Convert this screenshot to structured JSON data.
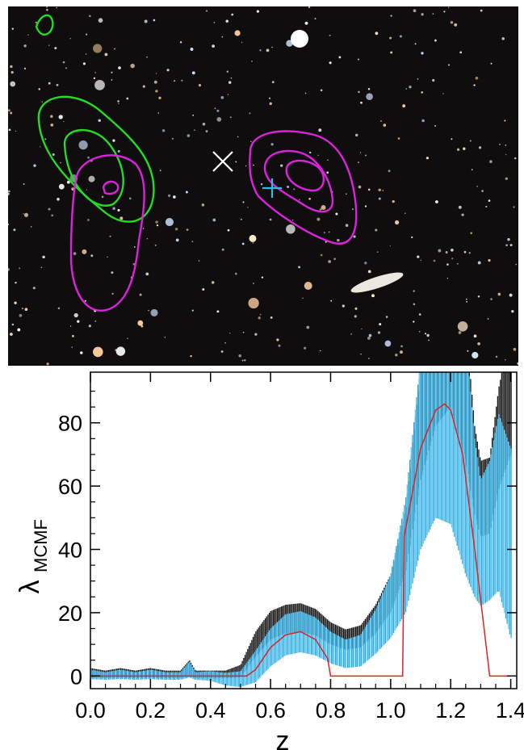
{
  "colors": {
    "sky_background": "#0f0d0e",
    "contour_green": "#22dd22",
    "contour_magenta": "#dd22dd",
    "marker_x": "#ffffff",
    "marker_plus": "#33bbdd",
    "errorbar_black": "#111111",
    "errorbar_blue": "#2ea8e0",
    "errorbar_lightblue": "#5fd0f5",
    "model_line": "#dd2222"
  },
  "image_panel": {
    "markers": [
      "cross-x-marker",
      "plus-marker"
    ],
    "contours": [
      "green-contours-left",
      "magenta-contours-left",
      "magenta-contours-right"
    ]
  },
  "chart_data": {
    "type": "line",
    "title": "",
    "xlabel": "z",
    "ylabel_main": "λ",
    "ylabel_sub": "MCMF",
    "xlim": [
      0.0,
      1.42
    ],
    "ylim": [
      -4,
      96
    ],
    "x_ticks": [
      "0.0",
      "0.2",
      "0.4",
      "0.6",
      "0.8",
      "1.0",
      "1.2",
      "1.4"
    ],
    "y_ticks": [
      "0",
      "20",
      "40",
      "60",
      "80"
    ],
    "series": [
      {
        "style": "errorbar-black",
        "x": [
          0.0,
          0.05,
          0.1,
          0.15,
          0.2,
          0.25,
          0.3,
          0.33,
          0.35,
          0.4,
          0.45,
          0.5,
          0.55,
          0.6,
          0.65,
          0.7,
          0.75,
          0.8,
          0.85,
          0.9,
          0.95,
          1.0,
          1.05,
          1.1,
          1.15,
          1.2,
          1.25,
          1.28,
          1.3,
          1.33,
          1.36,
          1.4
        ],
        "y": [
          1,
          0.5,
          1,
          0.5,
          1,
          0.5,
          0.5,
          2.5,
          0.5,
          0.5,
          0.5,
          1.5,
          10,
          16,
          18,
          18.5,
          17,
          13.5,
          11.5,
          12.5,
          18,
          26,
          43,
          80,
          103,
          110,
          90,
          65,
          56,
          57,
          75,
          90
        ],
        "err": [
          1.5,
          1.2,
          1.5,
          1.2,
          1.5,
          1.2,
          1.2,
          2.5,
          1.2,
          1.2,
          1.2,
          2,
          4,
          4.5,
          4.5,
          4.5,
          4.2,
          3.5,
          3.2,
          3.5,
          4.5,
          6,
          10,
          18,
          24,
          25,
          22,
          14,
          12,
          12,
          16,
          20
        ]
      },
      {
        "style": "errorbar-blue",
        "x": [
          0.0,
          0.05,
          0.1,
          0.15,
          0.2,
          0.25,
          0.3,
          0.33,
          0.35,
          0.4,
          0.45,
          0.5,
          0.55,
          0.6,
          0.65,
          0.7,
          0.75,
          0.8,
          0.85,
          0.9,
          0.95,
          1.0,
          1.05,
          1.1,
          1.15,
          1.2,
          1.25,
          1.28,
          1.3,
          1.33,
          1.36,
          1.4
        ],
        "y": [
          0.5,
          0,
          0.5,
          0,
          0.5,
          0,
          0,
          2,
          0,
          0,
          -1,
          -1,
          3,
          9,
          13,
          14,
          12.5,
          9,
          7,
          8,
          14,
          22,
          38,
          70,
          90,
          90,
          70,
          50,
          42,
          46,
          55,
          42
        ],
        "err": [
          1.5,
          1.2,
          1.5,
          1.2,
          1.5,
          1.2,
          1.2,
          2.5,
          1.2,
          1.5,
          2,
          2.5,
          5,
          6,
          6.5,
          6.5,
          6,
          5,
          4.5,
          5,
          7,
          10,
          18,
          30,
          40,
          42,
          38,
          25,
          20,
          22,
          28,
          30
        ]
      },
      {
        "style": "model-line",
        "x": [
          0.0,
          0.05,
          0.1,
          0.2,
          0.3,
          0.4,
          0.48,
          0.52,
          0.55,
          0.6,
          0.65,
          0.7,
          0.75,
          0.79,
          0.8,
          0.9,
          1.0,
          1.04,
          1.045,
          1.1,
          1.15,
          1.18,
          1.2,
          1.24,
          1.28,
          1.32,
          1.33,
          1.4
        ],
        "y": [
          0,
          0,
          0,
          0,
          0,
          0,
          0,
          0,
          2,
          9,
          13,
          14,
          11.5,
          5.5,
          0,
          0,
          0,
          0,
          44,
          72,
          84,
          86,
          84,
          70,
          40,
          8,
          0,
          0
        ]
      }
    ]
  }
}
